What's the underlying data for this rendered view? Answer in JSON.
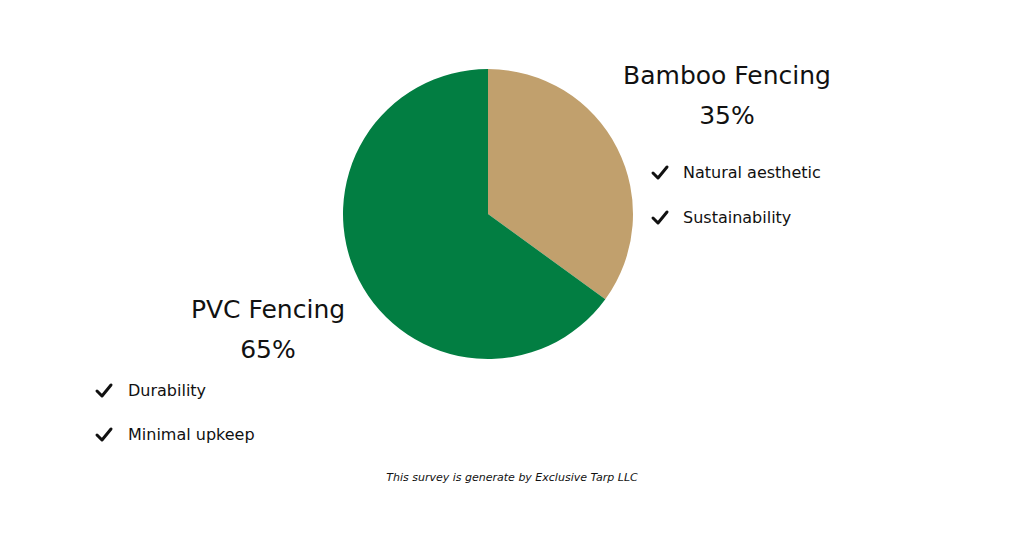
{
  "chart_data": {
    "type": "pie",
    "categories": [
      "Bamboo Fencing",
      "PVC Fencing"
    ],
    "values": [
      35,
      65
    ],
    "value_labels": [
      "35%",
      "65%"
    ],
    "colors": [
      "#c1a06d",
      "#027e42"
    ],
    "data_labels": true,
    "annotations": [
      [
        "Natural aesthetic",
        "Sustainability"
      ],
      [
        "Durability",
        "Minimal upkeep"
      ]
    ],
    "source": "This survey is generate by Exclusive Tarp LLC"
  }
}
